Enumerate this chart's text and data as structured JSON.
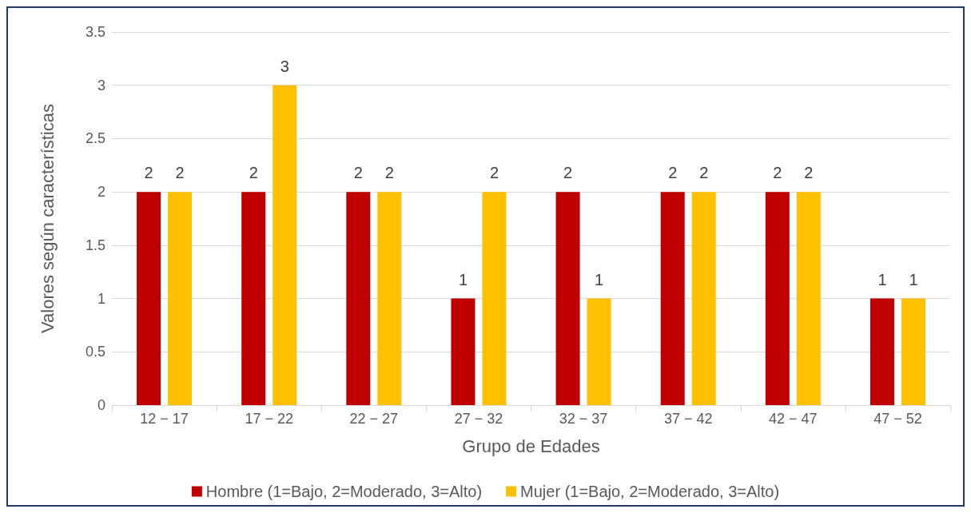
{
  "chart_data": {
    "type": "bar",
    "xlabel": "Grupo de Edades",
    "ylabel": "Valores según características",
    "categories": [
      "12 − 17",
      "17 − 22",
      "22 − 27",
      "27 − 32",
      "32 − 37",
      "37 − 42",
      "42 − 47",
      "47 − 52"
    ],
    "series": [
      {
        "name": "Hombre (1=Bajo, 2=Moderado, 3=Alto)",
        "color": "#c00000",
        "values": [
          2,
          2,
          2,
          1,
          2,
          2,
          2,
          1
        ]
      },
      {
        "name": "Mujer (1=Bajo, 2=Moderado, 3=Alto)",
        "color": "#ffc000",
        "values": [
          2,
          3,
          2,
          2,
          1,
          2,
          2,
          1
        ]
      }
    ],
    "ylim": [
      0,
      3.5
    ],
    "yticks": [
      0,
      0.5,
      1,
      1.5,
      2,
      2.5,
      3,
      3.5
    ],
    "grid": "y",
    "legend": "bottom",
    "data_labels": true
  }
}
